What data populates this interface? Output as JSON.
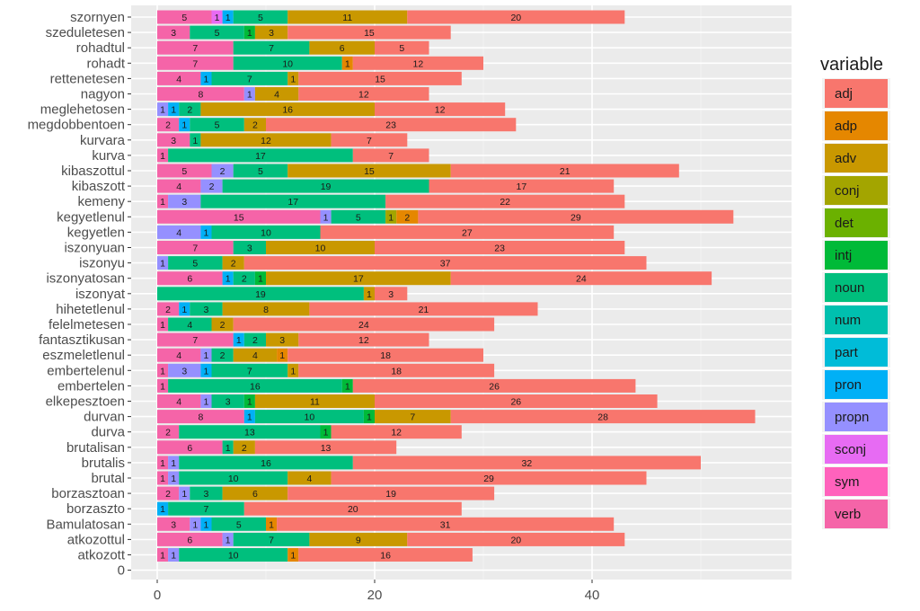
{
  "chart_data": {
    "type": "bar",
    "orientation": "horizontal",
    "stacked": true,
    "xlim": [
      0,
      57
    ],
    "xticks": [
      "0",
      "20",
      "40"
    ],
    "xtick_values": [
      0,
      20,
      40
    ],
    "grid": true,
    "legend": {
      "title": "variable",
      "placement": "right",
      "entries": [
        {
          "name": "adj",
          "color": "#F8766D"
        },
        {
          "name": "adp",
          "color": "#E58700"
        },
        {
          "name": "adv",
          "color": "#C99800"
        },
        {
          "name": "conj",
          "color": "#A3A500"
        },
        {
          "name": "det",
          "color": "#6BB100"
        },
        {
          "name": "intj",
          "color": "#00BA38"
        },
        {
          "name": "noun",
          "color": "#00BF7D"
        },
        {
          "name": "num",
          "color": "#00C0AF"
        },
        {
          "name": "part",
          "color": "#00BCD8"
        },
        {
          "name": "pron",
          "color": "#00B0F6"
        },
        {
          "name": "propn",
          "color": "#9590FF"
        },
        {
          "name": "sconj",
          "color": "#E76BF3"
        },
        {
          "name": "sym",
          "color": "#FF62BC"
        },
        {
          "name": "verb",
          "color": "#F564A8"
        }
      ]
    },
    "stack_order": [
      "verb",
      "sym",
      "sconj",
      "propn",
      "pron",
      "part",
      "num",
      "noun",
      "intj",
      "det",
      "conj",
      "adv",
      "adp",
      "adj"
    ],
    "categories": [
      {
        "name": "szornyen",
        "values": {
          "verb": 5,
          "sconj": 1,
          "pron": 1,
          "noun": 5,
          "adv": 11,
          "adj": 20
        }
      },
      {
        "name": "szeduletesen",
        "values": {
          "verb": 3,
          "noun": 5,
          "intj": 1,
          "adv": 3,
          "adj": 15
        }
      },
      {
        "name": "rohadtul",
        "values": {
          "verb": 7,
          "noun": 7,
          "adv": 6,
          "adj": 5
        }
      },
      {
        "name": "rohadt",
        "values": {
          "verb": 7,
          "noun": 10,
          "adp": 1,
          "adj": 12
        }
      },
      {
        "name": "rettenetesen",
        "values": {
          "verb": 4,
          "pron": 1,
          "noun": 7,
          "adv": 1,
          "adj": 15
        }
      },
      {
        "name": "nagyon",
        "values": {
          "verb": 8,
          "propn": 1,
          "adv": 4,
          "adj": 12
        }
      },
      {
        "name": "meglehetosen",
        "values": {
          "propn": 1,
          "pron": 1,
          "noun": 2,
          "adv": 16,
          "adj": 12
        }
      },
      {
        "name": "megdobbentoen",
        "values": {
          "verb": 2,
          "pron": 1,
          "noun": 5,
          "adv": 2,
          "adj": 23
        }
      },
      {
        "name": "kurvara",
        "values": {
          "verb": 3,
          "noun": 1,
          "adv": 12,
          "adj": 7
        }
      },
      {
        "name": "kurva",
        "values": {
          "verb": 1,
          "noun": 17,
          "adj": 7
        }
      },
      {
        "name": "kibaszottul",
        "values": {
          "verb": 5,
          "propn": 2,
          "noun": 5,
          "adv": 15,
          "adj": 21
        }
      },
      {
        "name": "kibaszott",
        "values": {
          "verb": 4,
          "propn": 2,
          "noun": 19,
          "adj": 17
        }
      },
      {
        "name": "kemeny",
        "values": {
          "verb": 1,
          "propn": 3,
          "noun": 17,
          "adj": 22
        }
      },
      {
        "name": "kegyetlenul",
        "values": {
          "verb": 15,
          "propn": 1,
          "noun": 5,
          "conj": 1,
          "adp": 2,
          "adj": 29
        }
      },
      {
        "name": "kegyetlen",
        "values": {
          "propn": 4,
          "pron": 1,
          "noun": 10,
          "adj": 27
        }
      },
      {
        "name": "iszonyuan",
        "values": {
          "verb": 7,
          "noun": 3,
          "adv": 10,
          "adj": 23
        }
      },
      {
        "name": "iszonyu",
        "values": {
          "propn": 1,
          "noun": 5,
          "adv": 2,
          "adj": 37
        }
      },
      {
        "name": "iszonyatosan",
        "values": {
          "verb": 6,
          "pron": 1,
          "noun": 2,
          "intj": 1,
          "adv": 17,
          "adj": 24
        }
      },
      {
        "name": "iszonyat",
        "values": {
          "noun": 19,
          "adv": 1,
          "adj": 3
        }
      },
      {
        "name": "hihetetlenul",
        "values": {
          "verb": 2,
          "pron": 1,
          "noun": 3,
          "adv": 8,
          "adj": 21
        }
      },
      {
        "name": "felelmetesen",
        "values": {
          "verb": 1,
          "noun": 4,
          "adv": 2,
          "adj": 24
        }
      },
      {
        "name": "fantasztikusan",
        "values": {
          "verb": 7,
          "pron": 1,
          "noun": 2,
          "adv": 3,
          "adj": 12
        }
      },
      {
        "name": "eszmeletlenul",
        "values": {
          "verb": 4,
          "propn": 1,
          "noun": 2,
          "adv": 4,
          "adp": 1,
          "adj": 18
        }
      },
      {
        "name": "embertelenul",
        "values": {
          "verb": 1,
          "propn": 3,
          "pron": 1,
          "noun": 7,
          "adv": 1,
          "adj": 18
        }
      },
      {
        "name": "embertelen",
        "values": {
          "verb": 1,
          "noun": 16,
          "intj": 1,
          "adj": 26
        }
      },
      {
        "name": "elkepesztoen",
        "values": {
          "verb": 4,
          "propn": 1,
          "noun": 3,
          "intj": 1,
          "adv": 11,
          "adj": 26
        }
      },
      {
        "name": "durvan",
        "values": {
          "verb": 8,
          "pron": 1,
          "noun": 10,
          "intj": 1,
          "adv": 7,
          "adj": 28
        }
      },
      {
        "name": "durva",
        "values": {
          "verb": 2,
          "noun": 13,
          "intj": 1,
          "adj": 12
        }
      },
      {
        "name": "brutalisan",
        "values": {
          "verb": 6,
          "noun": 1,
          "adv": 2,
          "adj": 13
        }
      },
      {
        "name": "brutalis",
        "values": {
          "verb": 1,
          "propn": 1,
          "noun": 16,
          "adj": 32
        }
      },
      {
        "name": "brutal",
        "values": {
          "verb": 1,
          "propn": 1,
          "noun": 10,
          "adv": 4,
          "adj": 29
        }
      },
      {
        "name": "borzasztoan",
        "values": {
          "verb": 2,
          "propn": 1,
          "noun": 3,
          "adv": 6,
          "adj": 19
        }
      },
      {
        "name": "borzaszto",
        "values": {
          "pron": 1,
          "noun": 7,
          "adj": 20
        }
      },
      {
        "name": "Bamulatosan",
        "values": {
          "verb": 3,
          "propn": 1,
          "pron": 1,
          "noun": 5,
          "adp": 1,
          "adj": 31
        }
      },
      {
        "name": "atkozottul",
        "values": {
          "verb": 6,
          "propn": 1,
          "noun": 7,
          "adv": 9,
          "adj": 20
        }
      },
      {
        "name": "atkozott",
        "values": {
          "verb": 1,
          "propn": 1,
          "noun": 10,
          "adp": 1,
          "adj": 16
        }
      },
      {
        "name": "0",
        "values": {}
      }
    ]
  }
}
